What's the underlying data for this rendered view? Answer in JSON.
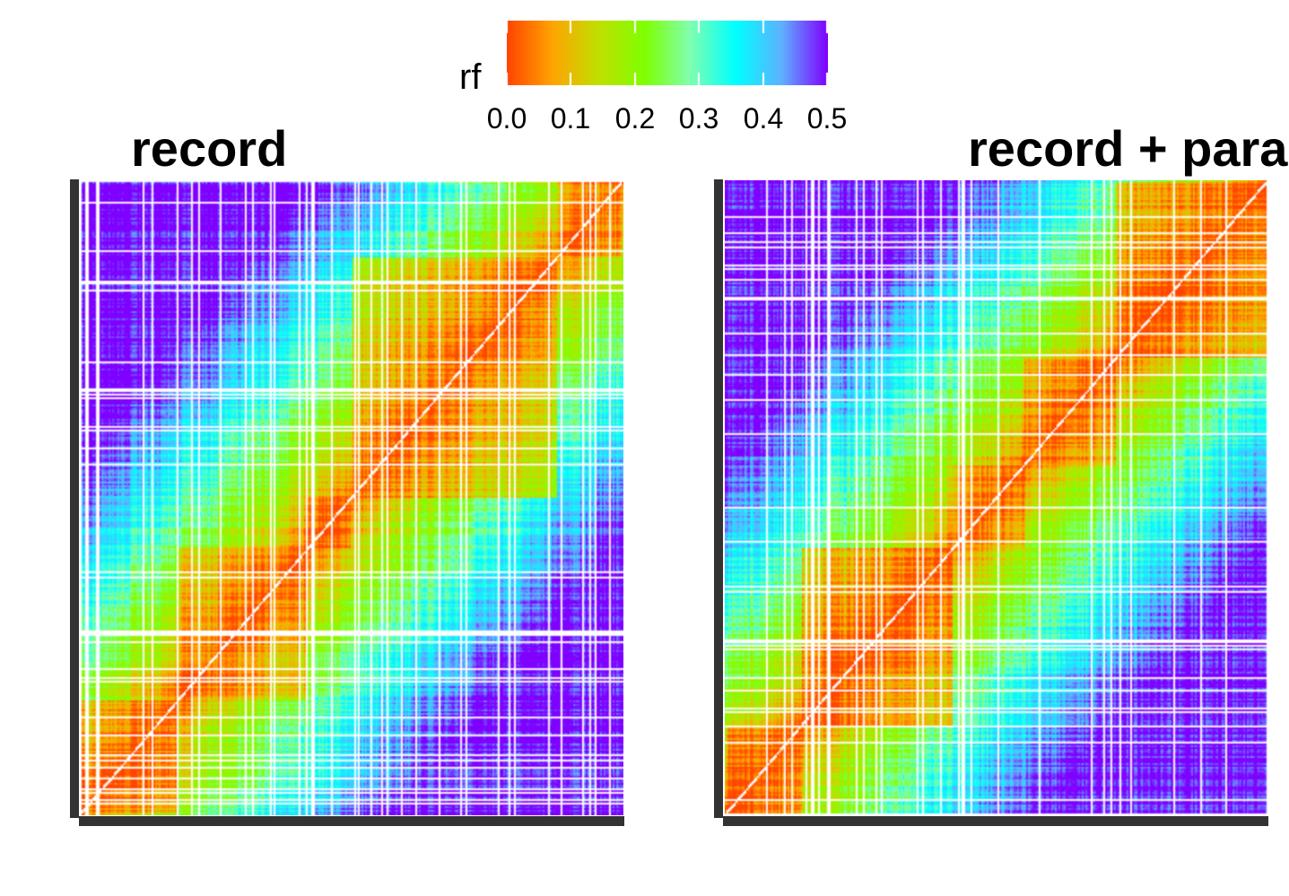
{
  "legend": {
    "title": "rf",
    "ticks": [
      "0.0",
      "0.1",
      "0.2",
      "0.3",
      "0.4",
      "0.5"
    ],
    "colors": [
      "#ff4500",
      "#ffa500",
      "#c0e000",
      "#7fff00",
      "#7fffb0",
      "#00ffff",
      "#5fb0ff",
      "#7f00ff"
    ]
  },
  "chart_data": [
    {
      "type": "heatmap",
      "title": "record",
      "value_name": "rf",
      "value_range": [
        0.0,
        0.5
      ],
      "missing_color": "#ffffff",
      "diagonal_color": "#ffffff",
      "pattern": "low rf (orange-red) along the diagonal with diagonal blocks; high rf (blue-violet) in far off-diagonal corners"
    },
    {
      "type": "heatmap",
      "title": "record + para",
      "value_name": "rf",
      "value_range": [
        0.0,
        0.5
      ],
      "missing_color": "#ffffff",
      "diagonal_color": "#ffffff",
      "pattern": "low rf (orange-red) along the diagonal with cross-shaped blocks; high rf (blue-violet) in far off-diagonal corners"
    }
  ]
}
